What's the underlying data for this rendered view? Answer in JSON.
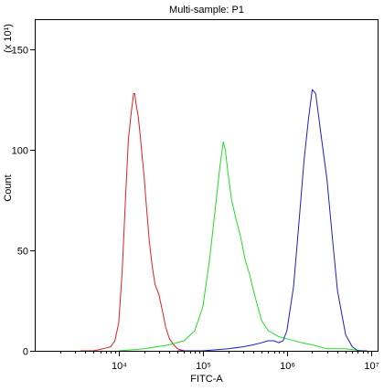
{
  "chart_data": {
    "type": "line",
    "title": "Multi-sample: P1",
    "xlabel": "FITC-A",
    "ylabel": "Count",
    "yunit": "(x 10¹)",
    "x_scale": "log",
    "xlim": [
      1000,
      12000000
    ],
    "ylim": [
      0,
      165
    ],
    "x_ticks": [
      {
        "value": 10000,
        "label": "10⁴"
      },
      {
        "value": 100000,
        "label": "10⁵"
      },
      {
        "value": 1000000,
        "label": "10⁶"
      },
      {
        "value": 10000000,
        "label": "10⁷"
      }
    ],
    "y_ticks": [
      0,
      50,
      100,
      150
    ],
    "grid": false,
    "legend": "none",
    "series": [
      {
        "color": "#e02020",
        "x": [
          3500,
          5000,
          6500,
          8000,
          9000,
          10000,
          11000,
          12000,
          13000,
          14000,
          15000,
          15500,
          16000,
          17000,
          18000,
          19000,
          20000,
          21000,
          22000,
          23000,
          25000,
          27000,
          30000,
          33000,
          36000,
          40000,
          45000,
          50000,
          60000,
          70000
        ],
        "y": [
          0,
          0,
          1,
          2,
          5,
          14,
          40,
          75,
          105,
          118,
          128,
          128,
          123,
          117,
          107,
          96,
          87,
          75,
          65,
          55,
          42,
          33,
          28,
          20,
          12,
          6,
          3,
          1,
          0,
          0
        ]
      },
      {
        "color": "#22dd22",
        "x": [
          10000,
          20000,
          40000,
          60000,
          80000,
          100000,
          120000,
          140000,
          160000,
          175000,
          185000,
          200000,
          220000,
          250000,
          280000,
          320000,
          360000,
          400000,
          450000,
          500000,
          600000,
          800000,
          1000000,
          1500000,
          2000000,
          3000000,
          5000000,
          8000000
        ],
        "y": [
          0,
          1,
          3,
          5,
          10,
          22,
          45,
          70,
          92,
          104,
          100,
          88,
          75,
          65,
          57,
          45,
          38,
          30,
          22,
          15,
          10,
          7,
          6,
          4,
          3,
          1,
          1,
          0
        ]
      },
      {
        "color": "#1e1ecc",
        "x": [
          50000,
          100000,
          200000,
          300000,
          400000,
          500000,
          600000,
          700000,
          800000,
          900000,
          1000000,
          1200000,
          1400000,
          1600000,
          1800000,
          2000000,
          2200000,
          2500000,
          3000000,
          3500000,
          4000000,
          5000000,
          6000000,
          7000000,
          9000000
        ],
        "y": [
          0,
          0,
          1,
          2,
          3,
          4,
          5,
          5,
          4,
          5,
          10,
          32,
          65,
          95,
          115,
          130,
          128,
          110,
          85,
          55,
          30,
          8,
          2,
          0,
          0
        ]
      }
    ]
  }
}
